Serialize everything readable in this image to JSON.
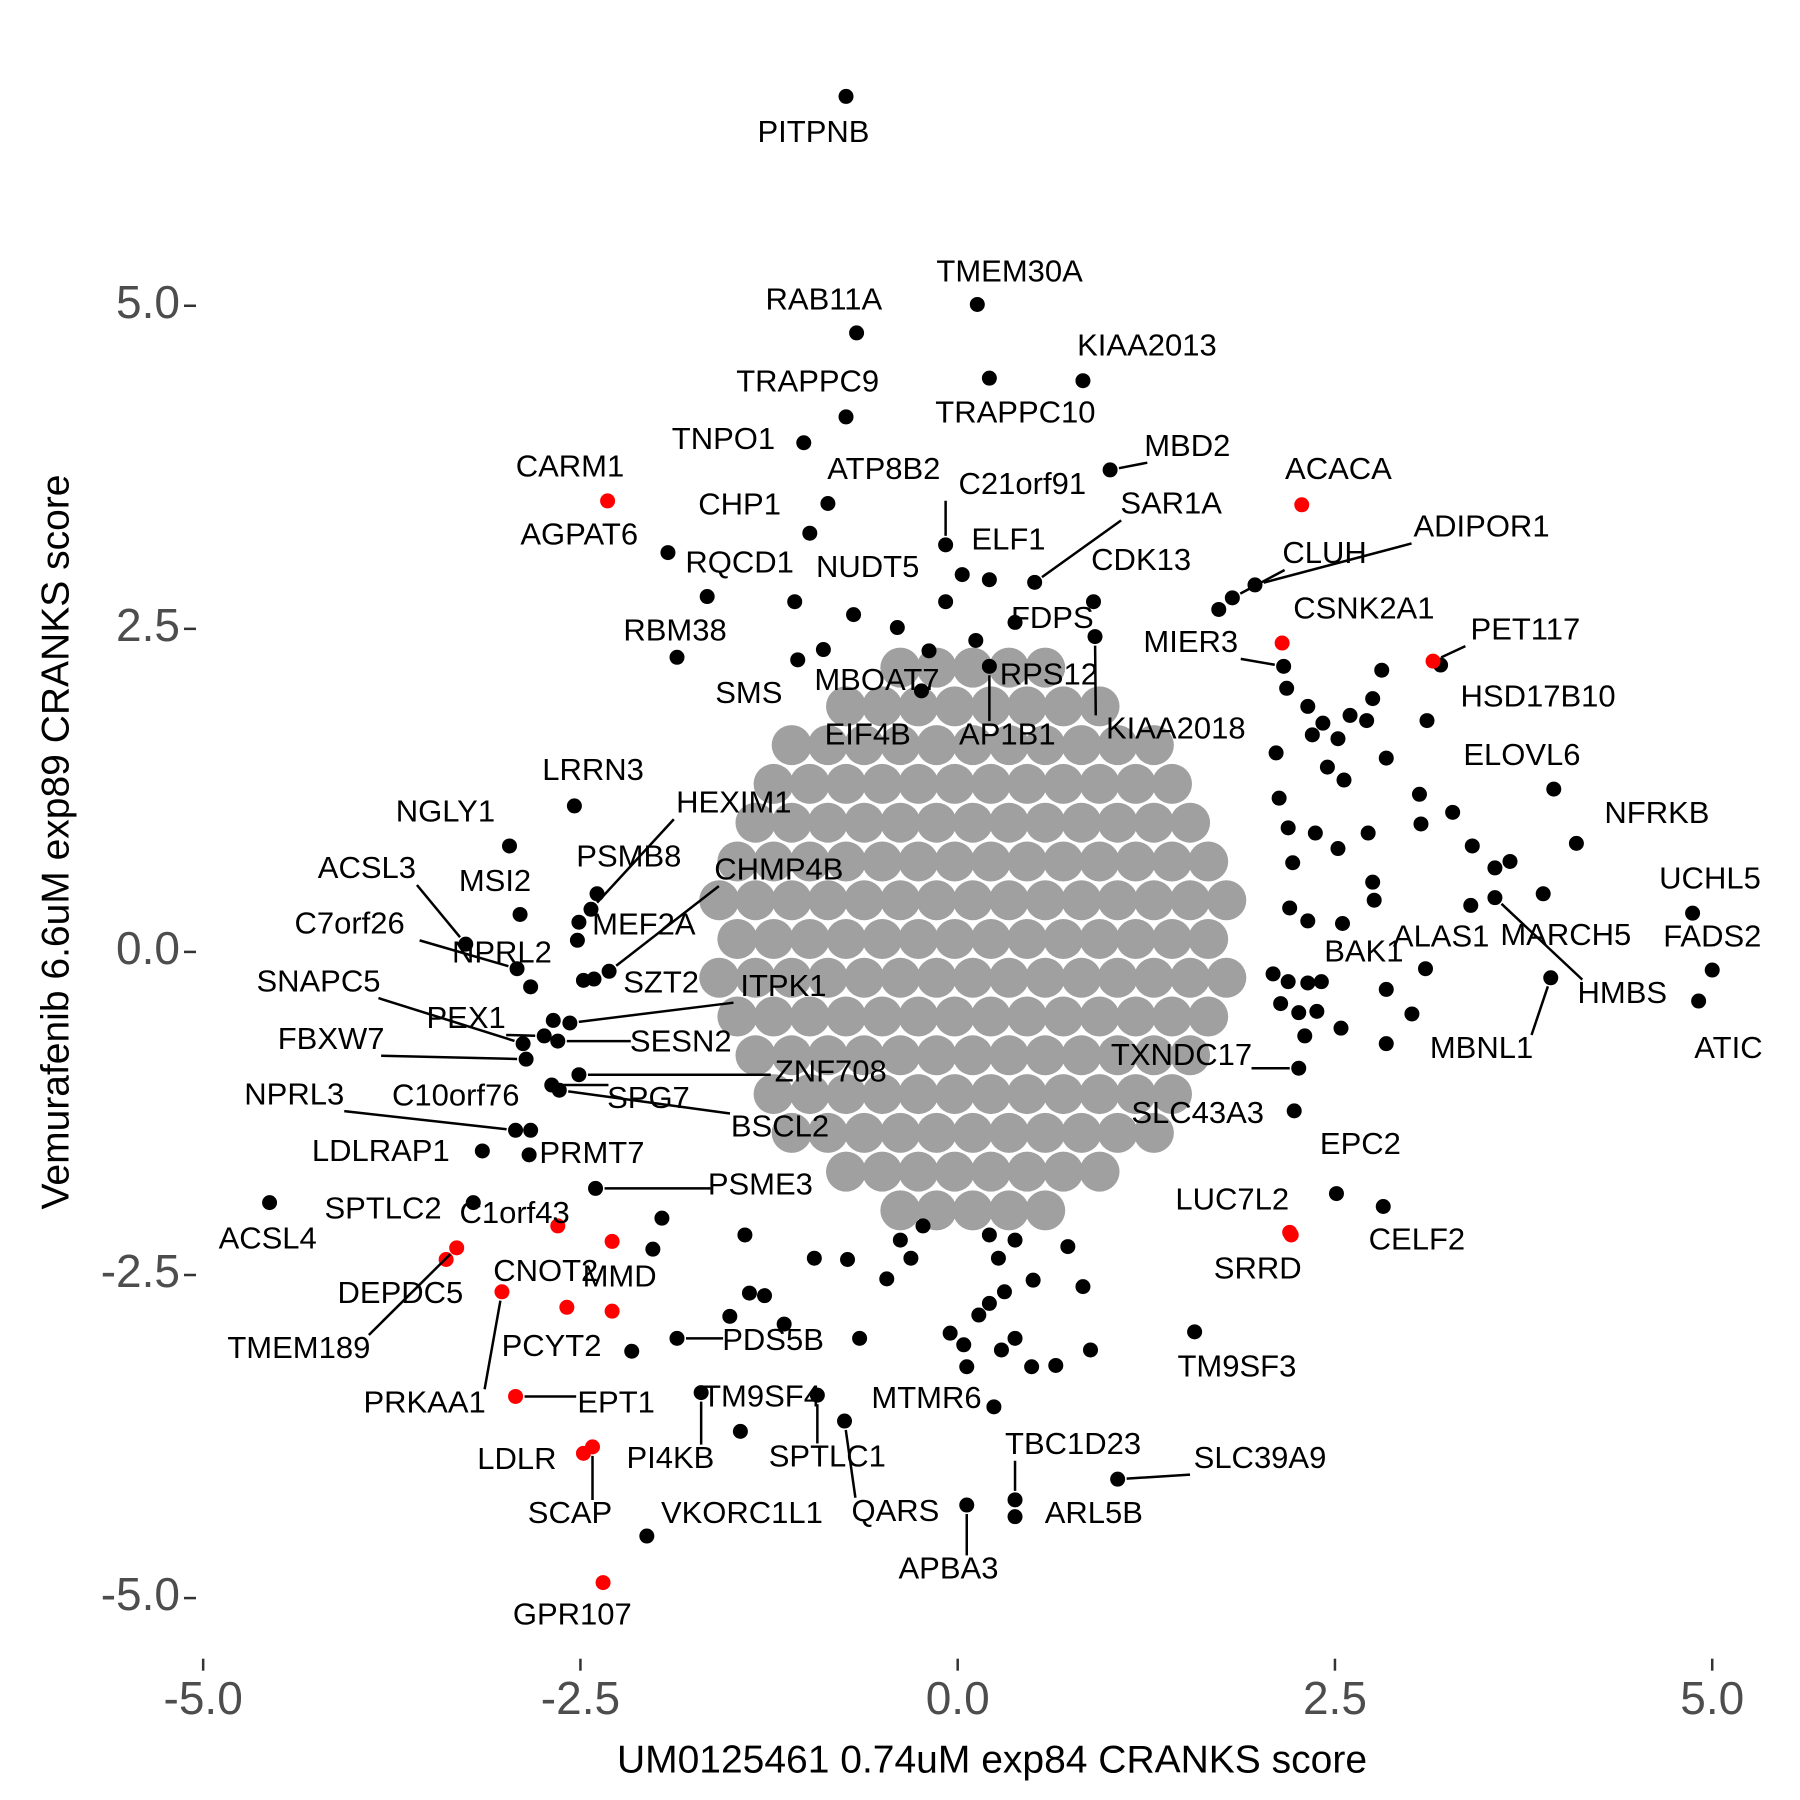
{
  "chart_data": {
    "type": "scatter",
    "xlabel": "UM0125461 0.74uM exp84 CRANKS score",
    "ylabel": "Vemurafenib 6.6uM exp89 CRANKS score",
    "xlim": [
      -5.1,
      5.1
    ],
    "ylim": [
      -5.5,
      6.8
    ],
    "xticks": [
      {
        "value": -5,
        "label": "-5.0"
      },
      -2.5,
      {
        "value": 0,
        "label": "0.0"
      },
      2.5,
      {
        "value": 5,
        "label": "5.0"
      }
    ],
    "yticks": [
      {
        "value": -5,
        "label": "-5.0"
      },
      -2.5,
      {
        "value": 0,
        "label": "0.0"
      },
      2.5,
      {
        "value": 5,
        "label": "5.0"
      }
    ],
    "grid": false,
    "series": [
      {
        "color": "#000000",
        "labels": [
          "PITPNB",
          "TMEM30A",
          "RAB11A",
          "KIAA2013",
          "TRAPPC9",
          "TRAPPC10",
          "TNPO1",
          "MBD2",
          "ATP8B2",
          "C21orf91",
          "SAR1A",
          "CHP1",
          "AGPAT6",
          "ADIPOR1",
          "ELF1",
          "CLUH",
          "RQCD1",
          "NUDT5",
          "CDK13",
          "FDPS",
          "RBM38",
          "MIER3",
          "KIAA2018",
          "RPS12",
          "MBOAT7",
          "SMS",
          "EIF4B",
          "AP1B1",
          "HSD17B10",
          "ELOVL6",
          "NFRKB",
          "UCHL5",
          "FADS2",
          "ATIC",
          "HMBS",
          "MARCH5",
          "ALAS1",
          "MBNL1",
          "BAK1",
          "TXNDC17",
          "SLC43A3",
          "EPC2",
          "CELF2",
          "TM9SF3",
          "SLC39A9",
          "TBC1D23",
          "ARL5B",
          "APBA3",
          "QARS",
          "MTMR6",
          "SPTLC1",
          "TM9SF4",
          "PI4KB",
          "VKORC1L1",
          "PCYT2",
          "PDS5B",
          "ACSL4",
          "SPTLC2",
          "PSME3",
          "PRMT7",
          "LDLRAP1",
          "NPRL3",
          "C10orf76",
          "BSCL2",
          "SPG7",
          "ZNF708",
          "FBXW7",
          "SESN2",
          "PEX1",
          "SNAPC5",
          "ITPK1",
          "SZT2",
          "NPRL2",
          "C7orf26",
          "MSI2",
          "ACSL3",
          "MEF2A",
          "CHMP4B",
          "PSMB8",
          "HEXIM1",
          "NGLY1",
          "LRRN3"
        ],
        "x": [
          -0.74,
          0.13,
          -0.67,
          0.83,
          -0.74,
          0.21,
          -1.02,
          1.01,
          -0.86,
          -0.08,
          0.51,
          -0.98,
          -1.92,
          1.97,
          0.03,
          1.82,
          -1.66,
          -0.69,
          0.9,
          0.38,
          -1.86,
          2.16,
          0.91,
          0.12,
          -0.19,
          -1.06,
          -0.24,
          0.21,
          3.11,
          3.95,
          4.1,
          4.87,
          5.0,
          4.91,
          3.56,
          3.88,
          3.1,
          3.93,
          2.84,
          2.26,
          2.23,
          2.51,
          2.82,
          1.57,
          1.06,
          0.38,
          0.38,
          0.06,
          -0.75,
          0.24,
          -0.93,
          -1.44,
          -1.7,
          -2.06,
          -2.16,
          -1.86,
          -4.56,
          -3.21,
          -2.4,
          -2.84,
          -3.15,
          -2.93,
          -2.83,
          -2.64,
          -2.69,
          -2.51,
          -2.86,
          -2.65,
          -2.74,
          -2.88,
          -2.57,
          -2.41,
          -2.83,
          -2.92,
          -2.9,
          -3.26,
          -2.51,
          -2.31,
          -2.39,
          -2.43,
          -2.97,
          -2.54
        ],
        "values": [
          6.62,
          5.01,
          4.79,
          4.42,
          4.14,
          4.44,
          3.94,
          3.73,
          3.47,
          3.15,
          2.86,
          3.24,
          3.09,
          2.84,
          2.92,
          2.74,
          2.75,
          2.61,
          2.71,
          2.55,
          2.28,
          2.21,
          2.44,
          2.41,
          2.33,
          2.26,
          2.02,
          2.21,
          1.79,
          1.26,
          0.84,
          0.3,
          -0.14,
          -0.38,
          0.42,
          0.45,
          -0.13,
          -0.2,
          -0.29,
          -0.9,
          -1.23,
          -1.87,
          -1.97,
          -2.94,
          -4.08,
          -4.24,
          -4.37,
          -4.28,
          -3.63,
          -3.52,
          -3.43,
          -3.71,
          -3.41,
          -4.52,
          -3.09,
          -2.99,
          -1.94,
          -1.94,
          -1.83,
          -1.57,
          -1.54,
          -1.38,
          -1.38,
          -1.07,
          -1.03,
          -0.95,
          -0.83,
          -0.69,
          -0.65,
          -0.71,
          -0.55,
          -0.21,
          -0.27,
          -0.13,
          0.29,
          0.06,
          0.23,
          -0.15,
          0.45,
          0.33,
          0.82,
          1.13
        ]
      },
      {
        "color": "#ff0000",
        "labels": [
          "CARM1",
          "ACACA",
          "CSNK2A1",
          "PET117",
          "LUC7L2",
          "SRRD",
          "C1orf43",
          "MMD",
          "CNOT2",
          "DEPDC5",
          "TMEM189",
          "PRKAA1",
          "EPT1",
          "LDLR",
          "SCAP",
          "GPR107"
        ],
        "x": [
          -2.32,
          2.28,
          2.15,
          3.15,
          2.2,
          2.21,
          -2.65,
          -2.29,
          -2.59,
          -3.39,
          -3.32,
          -3.02,
          -2.93,
          -2.48,
          -2.42,
          -2.35
        ],
        "values": [
          3.49,
          3.46,
          2.39,
          2.25,
          -2.17,
          -2.19,
          -2.12,
          -2.78,
          -2.75,
          -2.38,
          -2.29,
          -2.63,
          -3.44,
          -3.88,
          -3.83,
          -4.88
        ]
      },
      {
        "color": "#000000",
        "x": [
          2.18,
          2.32,
          2.42,
          2.52,
          2.35,
          2.6,
          2.75,
          2.71,
          2.81,
          2.11,
          2.45,
          2.56,
          2.84,
          2.13,
          2.19,
          2.37,
          2.52,
          2.72,
          3.06,
          3.28,
          3.07,
          3.41,
          3.56,
          3.66,
          3.4,
          2.75,
          2.76,
          2.22,
          2.2,
          2.32,
          2.55,
          2.09,
          2.19,
          2.32,
          2.41,
          2.14,
          2.26,
          2.38,
          2.54,
          2.3,
          3.01,
          2.84,
          -1.96,
          -2.02,
          -1.51,
          -1.41,
          -1.38,
          -1.28,
          -1.15,
          -0.95,
          -0.73,
          -0.47,
          -0.31,
          -0.23,
          -0.38,
          0.21,
          0.27,
          0.38,
          0.5,
          0.73,
          0.83,
          -0.05,
          0.04,
          0.14,
          0.29,
          0.38,
          0.49,
          0.65,
          0.88,
          0.31,
          0.06,
          0.21,
          -0.65,
          -1.08,
          -0.89,
          -0.4,
          -0.08,
          0.21,
          1.73,
          -2.52,
          -2.68,
          -2.48,
          3.2
        ],
        "values": [
          2.04,
          1.9,
          1.77,
          1.65,
          1.68,
          1.83,
          1.96,
          1.79,
          2.18,
          1.54,
          1.43,
          1.33,
          1.5,
          1.19,
          0.96,
          0.92,
          0.8,
          0.92,
          1.22,
          1.08,
          0.99,
          0.82,
          0.65,
          0.7,
          0.36,
          0.54,
          0.4,
          0.69,
          0.34,
          0.24,
          0.22,
          -0.17,
          -0.23,
          -0.24,
          -0.23,
          -0.4,
          -0.47,
          -0.46,
          -0.59,
          -0.65,
          -0.48,
          -0.71,
          -2.06,
          -2.3,
          -2.82,
          -2.19,
          -2.64,
          -2.66,
          -2.88,
          -2.37,
          -2.38,
          -2.53,
          -2.37,
          -2.12,
          -2.23,
          -2.19,
          -2.37,
          -2.23,
          -2.54,
          -2.28,
          -2.59,
          -2.95,
          -3.04,
          -2.81,
          -3.08,
          -2.99,
          -3.21,
          -3.2,
          -3.08,
          -2.63,
          -3.21,
          -2.72,
          -2.99,
          2.71,
          2.34,
          2.51,
          2.71,
          2.88,
          2.65,
          0.09,
          -0.53,
          -0.22,
          2.22
        ]
      },
      {
        "color": "#ff0000",
        "x": [
          -2.29
        ],
        "values": [
          -2.24
        ]
      },
      {
        "color": "#a0a0a0",
        "x": [
          -0.38,
          -0.14,
          0.1,
          0.34,
          0.58,
          -0.74,
          -0.5,
          -0.26,
          -0.02,
          0.22,
          0.46,
          0.7,
          0.94,
          -1.1,
          -0.86,
          -0.62,
          -0.38,
          -0.14,
          0.1,
          0.34,
          0.58,
          0.82,
          1.06,
          1.3,
          -1.22,
          -0.98,
          -0.74,
          -0.5,
          -0.26,
          -0.02,
          0.22,
          0.46,
          0.7,
          0.94,
          1.18,
          1.42,
          -1.34,
          -1.1,
          -0.86,
          -0.62,
          -0.38,
          -0.14,
          0.1,
          0.34,
          0.58,
          0.82,
          1.06,
          1.3,
          1.54,
          -1.46,
          -1.22,
          -0.98,
          -0.74,
          -0.5,
          -0.26,
          -0.02,
          0.22,
          0.46,
          0.7,
          0.94,
          1.18,
          1.42,
          1.66,
          -1.58,
          -1.34,
          -1.1,
          -0.86,
          -0.62,
          -0.38,
          -0.14,
          0.1,
          0.34,
          0.58,
          0.82,
          1.06,
          1.3,
          1.54,
          1.78,
          -1.46,
          -1.22,
          -0.98,
          -0.74,
          -0.5,
          -0.26,
          -0.02,
          0.22,
          0.46,
          0.7,
          0.94,
          1.18,
          1.42,
          1.66,
          -1.58,
          -1.34,
          -1.1,
          -0.86,
          -0.62,
          -0.38,
          -0.14,
          0.1,
          0.34,
          0.58,
          0.82,
          1.06,
          1.3,
          1.54,
          1.78,
          -1.46,
          -1.22,
          -0.98,
          -0.74,
          -0.5,
          -0.26,
          -0.02,
          0.22,
          0.46,
          0.7,
          0.94,
          1.18,
          1.42,
          1.66,
          -1.34,
          -1.1,
          -0.86,
          -0.62,
          -0.38,
          -0.14,
          0.1,
          0.34,
          0.58,
          0.82,
          1.06,
          1.3,
          1.54,
          -1.22,
          -0.98,
          -0.74,
          -0.5,
          -0.26,
          -0.02,
          0.22,
          0.46,
          0.7,
          0.94,
          1.18,
          1.42,
          -1.1,
          -0.86,
          -0.62,
          -0.38,
          -0.14,
          0.1,
          0.34,
          0.58,
          0.82,
          1.06,
          1.3,
          -0.74,
          -0.5,
          -0.26,
          -0.02,
          0.22,
          0.46,
          0.7,
          0.94,
          -0.38,
          -0.14,
          0.1,
          0.34,
          0.58
        ],
        "values": [
          -2,
          -2,
          -2,
          -2,
          -2,
          -1.7,
          -1.7,
          -1.7,
          -1.7,
          -1.7,
          -1.7,
          -1.7,
          -1.7,
          -1.4,
          -1.4,
          -1.4,
          -1.4,
          -1.4,
          -1.4,
          -1.4,
          -1.4,
          -1.4,
          -1.4,
          -1.4,
          -1.1,
          -1.1,
          -1.1,
          -1.1,
          -1.1,
          -1.1,
          -1.1,
          -1.1,
          -1.1,
          -1.1,
          -1.1,
          -1.1,
          -0.8,
          -0.8,
          -0.8,
          -0.8,
          -0.8,
          -0.8,
          -0.8,
          -0.8,
          -0.8,
          -0.8,
          -0.8,
          -0.8,
          -0.8,
          -0.5,
          -0.5,
          -0.5,
          -0.5,
          -0.5,
          -0.5,
          -0.5,
          -0.5,
          -0.5,
          -0.5,
          -0.5,
          -0.5,
          -0.5,
          -0.5,
          -0.2,
          -0.2,
          -0.2,
          -0.2,
          -0.2,
          -0.2,
          -0.2,
          -0.2,
          -0.2,
          -0.2,
          -0.2,
          -0.2,
          -0.2,
          -0.2,
          -0.2,
          0.1,
          0.1,
          0.1,
          0.1,
          0.1,
          0.1,
          0.1,
          0.1,
          0.1,
          0.1,
          0.1,
          0.1,
          0.1,
          0.1,
          0.4,
          0.4,
          0.4,
          0.4,
          0.4,
          0.4,
          0.4,
          0.4,
          0.4,
          0.4,
          0.4,
          0.4,
          0.4,
          0.4,
          0.4,
          0.7,
          0.7,
          0.7,
          0.7,
          0.7,
          0.7,
          0.7,
          0.7,
          0.7,
          0.7,
          0.7,
          0.7,
          0.7,
          0.7,
          1,
          1,
          1,
          1,
          1,
          1,
          1,
          1,
          1,
          1,
          1,
          1,
          1,
          1.3,
          1.3,
          1.3,
          1.3,
          1.3,
          1.3,
          1.3,
          1.3,
          1.3,
          1.3,
          1.3,
          1.3,
          1.6,
          1.6,
          1.6,
          1.6,
          1.6,
          1.6,
          1.6,
          1.6,
          1.6,
          1.6,
          1.6,
          1.9,
          1.9,
          1.9,
          1.9,
          1.9,
          1.9,
          1.9,
          1.9,
          2.2,
          2.2,
          2.2,
          2.2,
          2.2
        ]
      }
    ]
  }
}
